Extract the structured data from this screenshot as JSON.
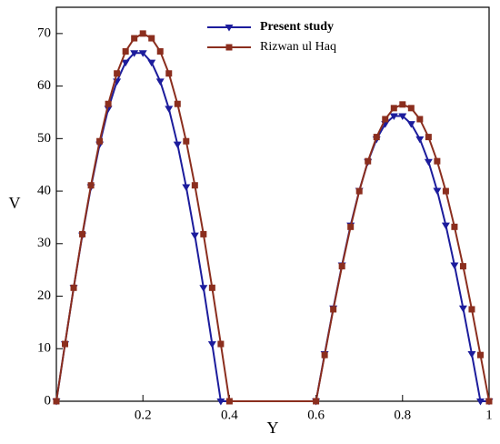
{
  "chart_data": {
    "type": "line",
    "xlabel": "Y",
    "ylabel": "V",
    "xlim": [
      0,
      1
    ],
    "ylim": [
      0,
      75
    ],
    "xticks": [
      0.2,
      0.4,
      0.6,
      0.8,
      1
    ],
    "yticks": [
      0,
      10,
      20,
      30,
      40,
      50,
      60,
      70
    ],
    "legend": "top",
    "series": [
      {
        "name": "Present study",
        "color": "#1c1c9c",
        "marker": "triangle-down",
        "x": [
          0,
          0.02,
          0.04,
          0.06,
          0.08,
          0.1,
          0.12,
          0.14,
          0.16,
          0.18,
          0.2,
          0.22,
          0.24,
          0.26,
          0.28,
          0.3,
          0.32,
          0.34,
          0.36,
          0.38,
          0.6,
          0.62,
          0.64,
          0.66,
          0.68,
          0.7,
          0.72,
          0.74,
          0.76,
          0.78,
          0.8,
          0.82,
          0.84,
          0.86,
          0.88,
          0.9,
          0.92,
          0.94,
          0.96,
          0.98,
          1
        ],
        "values": [
          0,
          10.9,
          21.6,
          31.6,
          40.8,
          48.9,
          55.7,
          60.9,
          64.5,
          66.3,
          66.3,
          64.5,
          60.9,
          55.7,
          48.9,
          40.8,
          31.6,
          21.6,
          10.9,
          0,
          0,
          9.0,
          17.7,
          25.9,
          33.5,
          40.1,
          45.6,
          49.9,
          52.8,
          54.3,
          54.3,
          52.8,
          49.9,
          45.6,
          40.1,
          33.5,
          25.9,
          17.7,
          9.0,
          0,
          0
        ]
      },
      {
        "name": "Rizwan ul Haq",
        "color": "#8b2e1e",
        "marker": "square",
        "x": [
          0,
          0.02,
          0.04,
          0.06,
          0.08,
          0.1,
          0.12,
          0.14,
          0.16,
          0.18,
          0.2,
          0.22,
          0.24,
          0.26,
          0.28,
          0.3,
          0.32,
          0.34,
          0.36,
          0.38,
          0.4,
          0.6,
          0.62,
          0.64,
          0.66,
          0.68,
          0.7,
          0.72,
          0.74,
          0.76,
          0.78,
          0.8,
          0.82,
          0.84,
          0.86,
          0.88,
          0.9,
          0.92,
          0.94,
          0.96,
          0.98,
          1
        ],
        "values": [
          0,
          10.9,
          21.6,
          31.8,
          41.1,
          49.5,
          56.6,
          62.4,
          66.6,
          69.1,
          70,
          69.1,
          66.6,
          62.4,
          56.6,
          49.5,
          41.1,
          31.8,
          21.6,
          10.9,
          0,
          0,
          8.8,
          17.5,
          25.7,
          33.2,
          40.0,
          45.7,
          50.3,
          53.7,
          55.8,
          56.5,
          55.8,
          53.7,
          50.3,
          45.7,
          40.0,
          33.2,
          25.7,
          17.5,
          8.8,
          0
        ]
      }
    ]
  }
}
